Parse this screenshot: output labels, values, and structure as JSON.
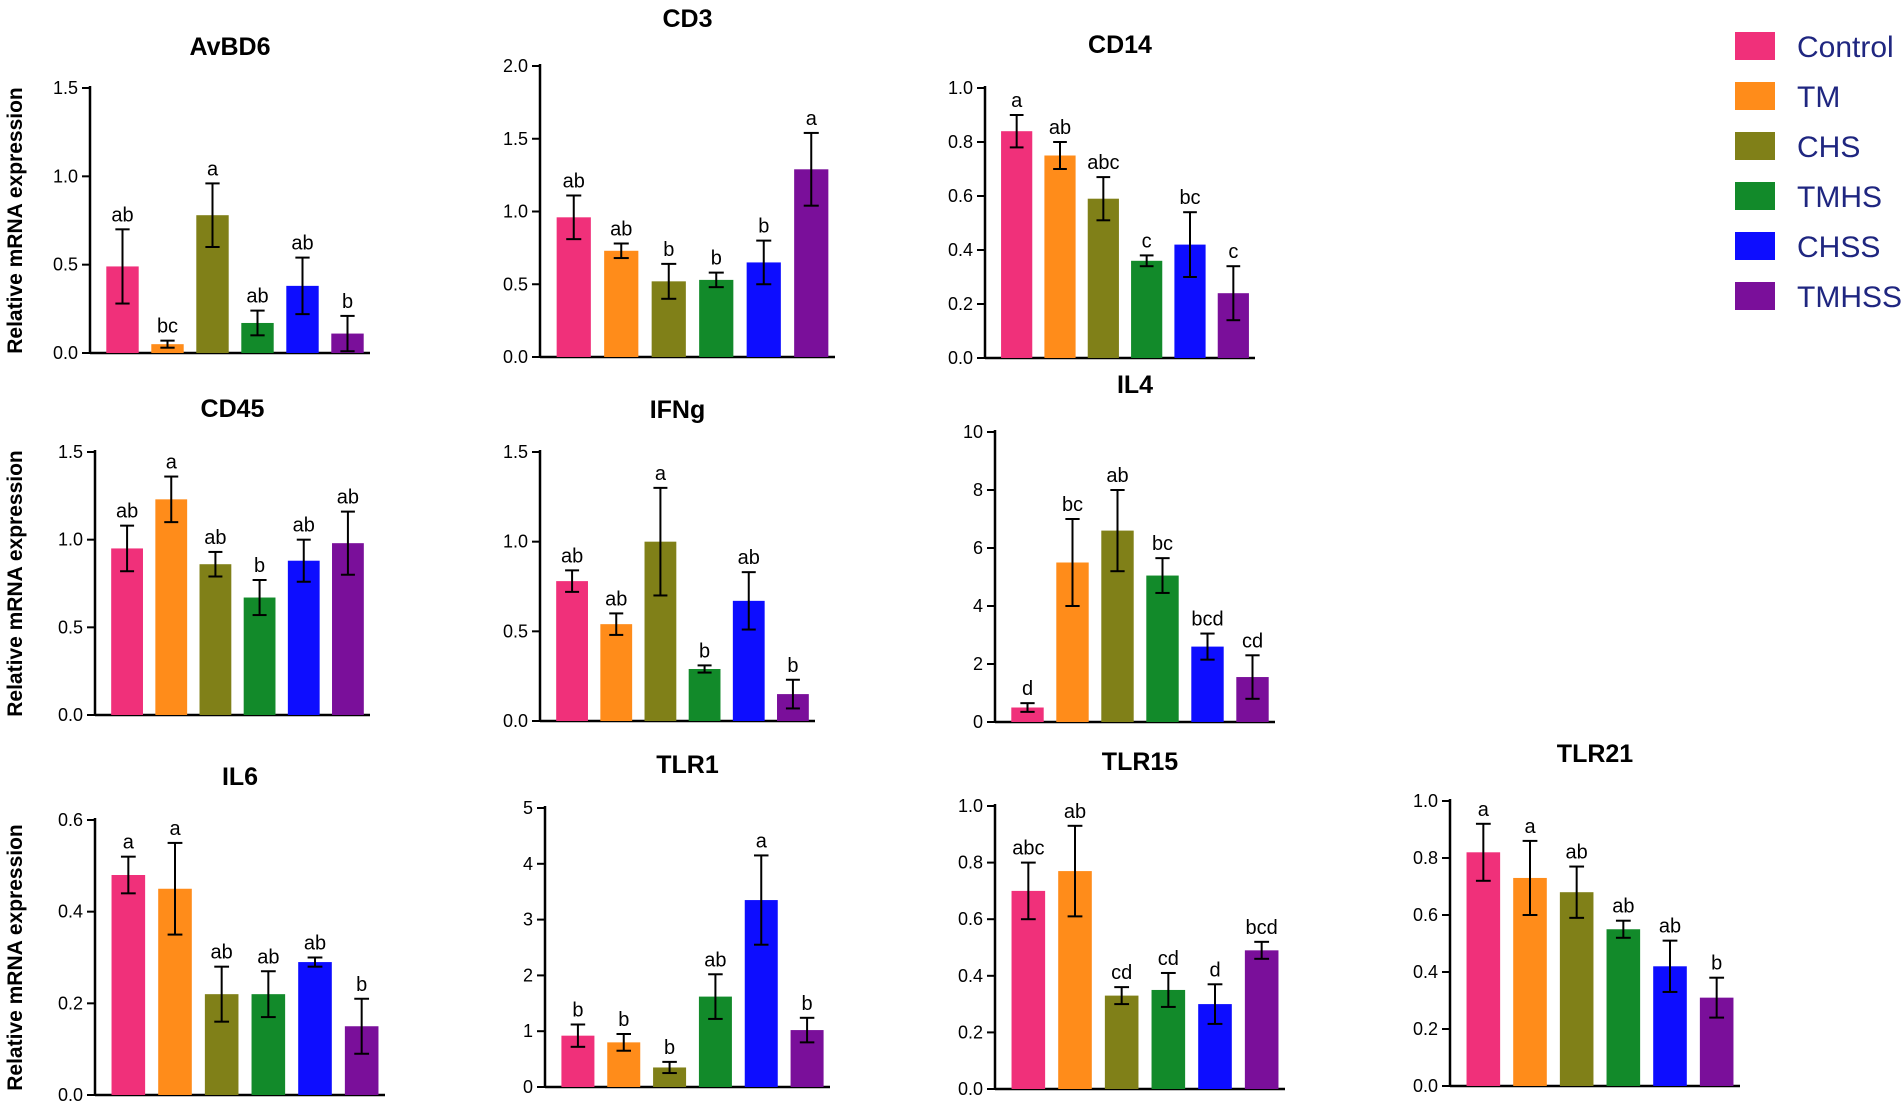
{
  "figure": {
    "ylabel": "Relative mRNA expression",
    "legend": {
      "placement": "top-right",
      "entries": [
        {
          "name": "Control",
          "color": "#f0307a"
        },
        {
          "name": "TM",
          "color": "#ff8c1a"
        },
        {
          "name": "CHS",
          "color": "#808018"
        },
        {
          "name": "TMHS",
          "color": "#128a2a"
        },
        {
          "name": "CHSS",
          "color": "#0d0dff"
        },
        {
          "name": "TMHSS",
          "color": "#7a0f9a"
        }
      ]
    }
  },
  "chart_data": [
    {
      "type": "bar",
      "title": "AvBD6",
      "ylabel": "Relative mRNA expression",
      "ylim": [
        0,
        1.5
      ],
      "yticks": [
        "0.0",
        "0.5",
        "1.0",
        "1.5"
      ],
      "categories": [
        "Control",
        "TM",
        "CHS",
        "TMHS",
        "CHSS",
        "TMHSS"
      ],
      "values": [
        0.49,
        0.05,
        0.78,
        0.17,
        0.38,
        0.11
      ],
      "errors": [
        0.21,
        0.02,
        0.18,
        0.07,
        0.16,
        0.1
      ],
      "labels": [
        "ab",
        "bc",
        "a",
        "ab",
        "ab",
        "b"
      ]
    },
    {
      "type": "bar",
      "title": "CD3",
      "ylabel": "",
      "ylim": [
        0,
        2.0
      ],
      "yticks": [
        "0.0",
        "0.5",
        "1.0",
        "1.5",
        "2.0"
      ],
      "categories": [
        "Control",
        "TM",
        "CHS",
        "TMHS",
        "CHSS",
        "TMHSS"
      ],
      "values": [
        0.96,
        0.73,
        0.52,
        0.53,
        0.65,
        1.29
      ],
      "errors": [
        0.15,
        0.05,
        0.12,
        0.05,
        0.15,
        0.25
      ],
      "labels": [
        "ab",
        "ab",
        "b",
        "b",
        "b",
        "a"
      ]
    },
    {
      "type": "bar",
      "title": "CD14",
      "ylabel": "",
      "ylim": [
        0,
        1.0
      ],
      "yticks": [
        "0.0",
        "0.2",
        "0.4",
        "0.6",
        "0.8",
        "1.0"
      ],
      "categories": [
        "Control",
        "TM",
        "CHS",
        "TMHS",
        "CHSS",
        "TMHSS"
      ],
      "values": [
        0.84,
        0.75,
        0.59,
        0.36,
        0.42,
        0.24
      ],
      "errors": [
        0.06,
        0.05,
        0.08,
        0.02,
        0.12,
        0.1
      ],
      "labels": [
        "a",
        "ab",
        "abc",
        "c",
        "bc",
        "c"
      ]
    },
    {
      "type": "bar",
      "title": "CD45",
      "ylabel": "Relative mRNA expression",
      "ylim": [
        0,
        1.5
      ],
      "yticks": [
        "0.0",
        "0.5",
        "1.0",
        "1.5"
      ],
      "categories": [
        "Control",
        "TM",
        "CHS",
        "TMHS",
        "CHSS",
        "TMHSS"
      ],
      "values": [
        0.95,
        1.23,
        0.86,
        0.67,
        0.88,
        0.98
      ],
      "errors": [
        0.13,
        0.13,
        0.07,
        0.1,
        0.12,
        0.18
      ],
      "labels": [
        "ab",
        "a",
        "ab",
        "b",
        "ab",
        "ab"
      ]
    },
    {
      "type": "bar",
      "title": "IFNg",
      "ylabel": "",
      "ylim": [
        0,
        1.5
      ],
      "yticks": [
        "0.0",
        "0.5",
        "1.0",
        "1.5"
      ],
      "categories": [
        "Control",
        "TM",
        "CHS",
        "TMHS",
        "CHSS",
        "TMHSS"
      ],
      "values": [
        0.78,
        0.54,
        1.0,
        0.29,
        0.67,
        0.15
      ],
      "errors": [
        0.06,
        0.06,
        0.3,
        0.02,
        0.16,
        0.08
      ],
      "labels": [
        "ab",
        "ab",
        "a",
        "b",
        "ab",
        "b"
      ]
    },
    {
      "type": "bar",
      "title": "IL4",
      "ylabel": "",
      "ylim": [
        0,
        10
      ],
      "yticks": [
        "0",
        "2",
        "4",
        "6",
        "8",
        "10"
      ],
      "categories": [
        "Control",
        "TM",
        "CHS",
        "TMHS",
        "CHSS",
        "TMHSS"
      ],
      "values": [
        0.5,
        5.5,
        6.6,
        5.05,
        2.6,
        1.55
      ],
      "errors": [
        0.15,
        1.5,
        1.4,
        0.6,
        0.45,
        0.75
      ],
      "labels": [
        "d",
        "bc",
        "ab",
        "bc",
        "bcd",
        "cd"
      ]
    },
    {
      "type": "bar",
      "title": "IL6",
      "ylabel": "Relative mRNA expression",
      "ylim": [
        0,
        0.6
      ],
      "yticks": [
        "0.0",
        "0.2",
        "0.4",
        "0.6"
      ],
      "categories": [
        "Control",
        "TM",
        "CHS",
        "TMHS",
        "CHSS",
        "TMHSS"
      ],
      "values": [
        0.48,
        0.45,
        0.22,
        0.22,
        0.29,
        0.15
      ],
      "errors": [
        0.04,
        0.1,
        0.06,
        0.05,
        0.01,
        0.06
      ],
      "labels": [
        "a",
        "a",
        "ab",
        "ab",
        "ab",
        "b"
      ]
    },
    {
      "type": "bar",
      "title": "TLR1",
      "ylabel": "",
      "ylim": [
        0,
        5
      ],
      "yticks": [
        "0",
        "1",
        "2",
        "3",
        "4",
        "5"
      ],
      "categories": [
        "Control",
        "TM",
        "CHS",
        "TMHS",
        "CHSS",
        "TMHSS"
      ],
      "values": [
        0.92,
        0.8,
        0.35,
        1.62,
        3.35,
        1.02
      ],
      "errors": [
        0.2,
        0.15,
        0.1,
        0.4,
        0.8,
        0.22
      ],
      "labels": [
        "b",
        "b",
        "b",
        "ab",
        "a",
        "b"
      ]
    },
    {
      "type": "bar",
      "title": "TLR15",
      "ylabel": "",
      "ylim": [
        0,
        1.0
      ],
      "yticks": [
        "0.0",
        "0.2",
        "0.4",
        "0.6",
        "0.8",
        "1.0"
      ],
      "categories": [
        "Control",
        "TM",
        "CHS",
        "TMHS",
        "CHSS",
        "TMHSS"
      ],
      "values": [
        0.7,
        0.77,
        0.33,
        0.35,
        0.3,
        0.49
      ],
      "errors": [
        0.1,
        0.16,
        0.03,
        0.06,
        0.07,
        0.03
      ],
      "labels": [
        "abc",
        "ab",
        "cd",
        "cd",
        "d",
        "bcd"
      ]
    },
    {
      "type": "bar",
      "title": "TLR21",
      "ylabel": "",
      "ylim": [
        0,
        1.0
      ],
      "yticks": [
        "0.0",
        "0.2",
        "0.4",
        "0.6",
        "0.8",
        "1.0"
      ],
      "categories": [
        "Control",
        "TM",
        "CHS",
        "TMHS",
        "CHSS",
        "TMHSS"
      ],
      "values": [
        0.82,
        0.73,
        0.68,
        0.55,
        0.42,
        0.31
      ],
      "errors": [
        0.1,
        0.13,
        0.09,
        0.03,
        0.09,
        0.07
      ],
      "labels": [
        "a",
        "a",
        "ab",
        "ab",
        "ab",
        "b"
      ]
    }
  ]
}
